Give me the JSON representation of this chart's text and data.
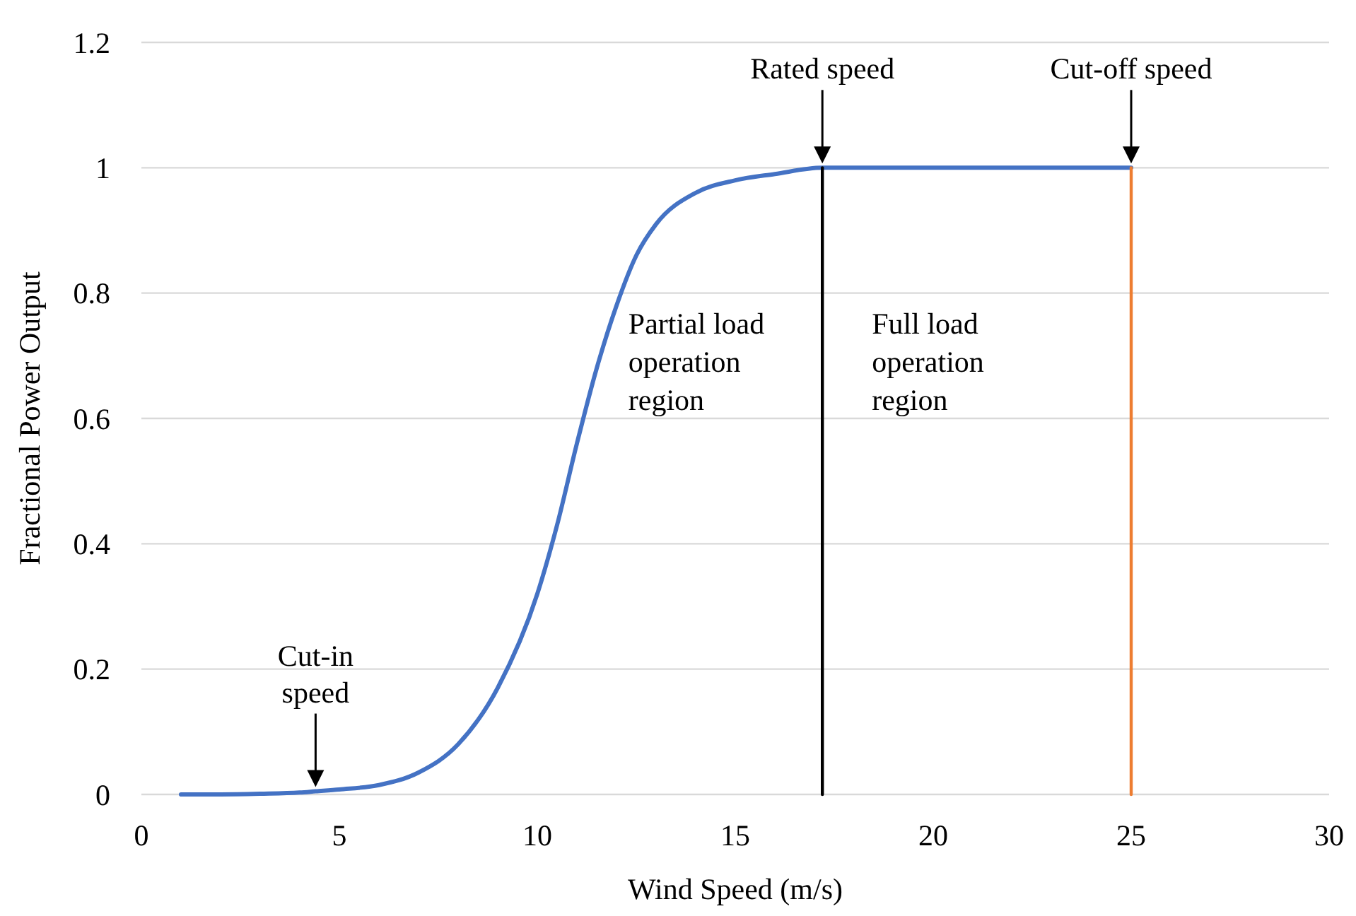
{
  "chart_data": {
    "type": "line",
    "xlabel": "Wind Speed (m/s)",
    "ylabel": "Fractional Power Output",
    "xlim": [
      0,
      30
    ],
    "xticks": [
      0,
      5,
      10,
      15,
      20,
      25,
      30
    ],
    "ylim": [
      0,
      1.2
    ],
    "yticks": [
      0,
      0.2,
      0.4,
      0.6,
      0.8,
      1,
      1.2
    ],
    "grid": "y",
    "marker": "none",
    "line_style": "solid",
    "series": [
      {
        "color": "#4472c4",
        "x": [
          1,
          2,
          3,
          4,
          4.4,
          5,
          6,
          7,
          8,
          9,
          10,
          10.5,
          11,
          11.5,
          12,
          12.5,
          13,
          14,
          15,
          16,
          17.2,
          20,
          25
        ],
        "values": [
          0,
          0,
          0.001,
          0.003,
          0.005,
          0.008,
          0.015,
          0.035,
          0.08,
          0.17,
          0.32,
          0.43,
          0.56,
          0.68,
          0.78,
          0.86,
          0.91,
          0.96,
          0.98,
          0.99,
          1,
          1,
          1
        ]
      },
      {
        "color": "#000000",
        "x": [
          17.2,
          17.2
        ],
        "values": [
          0,
          1
        ]
      },
      {
        "color": "#ed7d31",
        "x": [
          25,
          25
        ],
        "values": [
          0,
          1
        ]
      }
    ],
    "annotations": [
      "Partial load\noperation\nregion",
      "Full load\noperation\nregion",
      {
        "text": "Cut-in\nspeed",
        "x": 4.4,
        "y": 0.005
      },
      {
        "text": "Rated speed",
        "x": 17.2,
        "y": 1
      },
      {
        "text": "Cut-off speed",
        "x": 25,
        "y": 1
      }
    ]
  }
}
